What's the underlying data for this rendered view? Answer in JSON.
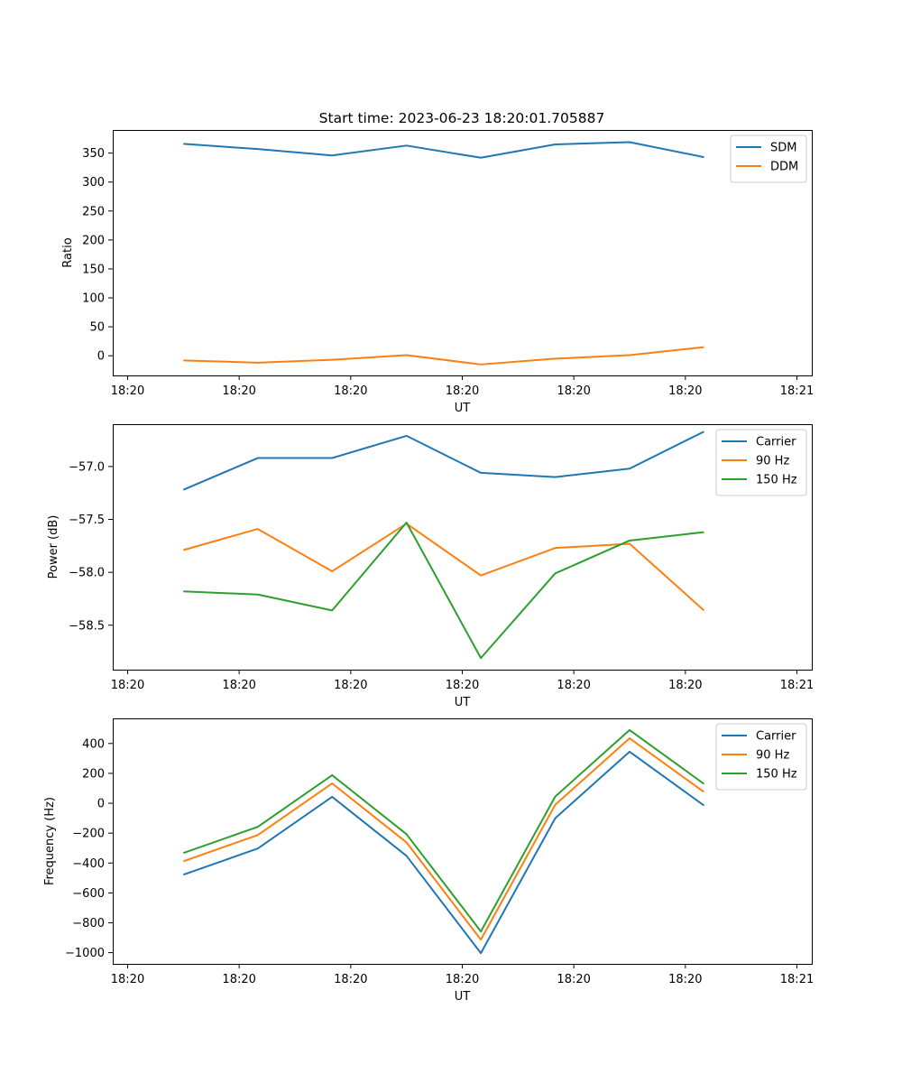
{
  "figure": {
    "title": "Start time: 2023-06-23 18:20:01.705887"
  },
  "chart_data": [
    {
      "type": "line",
      "title": "Start time: 2023-06-23 18:20:01.705887",
      "xlabel": "UT",
      "ylabel": "Ratio",
      "x": [
        1,
        2,
        3,
        4,
        5,
        6,
        7,
        8
      ],
      "x_ticks": [
        0.25,
        1.75,
        3.25,
        4.75,
        6.25,
        7.75,
        9.25
      ],
      "x_tick_labels": [
        "18:20",
        "18:20",
        "18:20",
        "18:20",
        "18:20",
        "18:20",
        "18:21"
      ],
      "xlim": [
        0.05,
        9.45
      ],
      "ylim": [
        -34,
        390
      ],
      "y_ticks": [
        0,
        50,
        100,
        150,
        200,
        250,
        300,
        350
      ],
      "y_tick_labels": [
        "0",
        "50",
        "100",
        "150",
        "200",
        "250",
        "300",
        "350"
      ],
      "grid": false,
      "legend_position": "upper right",
      "series": [
        {
          "name": "SDM",
          "color": "#1f77b4",
          "values": [
            366,
            357,
            346,
            363,
            342,
            365,
            369,
            343
          ]
        },
        {
          "name": "DDM",
          "color": "#ff7f0e",
          "values": [
            -8,
            -12,
            -7,
            1,
            -15,
            -5,
            1,
            15
          ]
        }
      ]
    },
    {
      "type": "line",
      "xlabel": "UT",
      "ylabel": "Power (dB)",
      "x": [
        1,
        2,
        3,
        4,
        5,
        6,
        7,
        8
      ],
      "x_ticks": [
        0.25,
        1.75,
        3.25,
        4.75,
        6.25,
        7.75,
        9.25
      ],
      "x_tick_labels": [
        "18:20",
        "18:20",
        "18:20",
        "18:20",
        "18:20",
        "18:20",
        "18:21"
      ],
      "xlim": [
        0.05,
        9.45
      ],
      "ylim": [
        -58.92,
        -56.6
      ],
      "y_ticks": [
        -58.5,
        -58.0,
        -57.5,
        -57.0
      ],
      "y_tick_labels": [
        "−58.5",
        "−58.0",
        "−57.5",
        "−57.0"
      ],
      "grid": false,
      "legend_position": "upper right",
      "series": [
        {
          "name": "Carrier",
          "color": "#1f77b4",
          "values": [
            -57.22,
            -56.92,
            -56.92,
            -56.71,
            -57.06,
            -57.1,
            -57.02,
            -56.67
          ]
        },
        {
          "name": "90 Hz",
          "color": "#ff7f0e",
          "values": [
            -57.79,
            -57.59,
            -57.99,
            -57.54,
            -58.03,
            -57.77,
            -57.73,
            -58.36
          ]
        },
        {
          "name": "150 Hz",
          "color": "#2ca02c",
          "values": [
            -58.18,
            -58.21,
            -58.36,
            -57.53,
            -58.81,
            -58.01,
            -57.7,
            -57.62
          ]
        }
      ]
    },
    {
      "type": "line",
      "xlabel": "UT",
      "ylabel": "Frequency (Hz)",
      "x": [
        1,
        2,
        3,
        4,
        5,
        6,
        7,
        8
      ],
      "x_ticks": [
        0.25,
        1.75,
        3.25,
        4.75,
        6.25,
        7.75,
        9.25
      ],
      "x_tick_labels": [
        "18:20",
        "18:20",
        "18:20",
        "18:20",
        "18:20",
        "18:20",
        "18:21"
      ],
      "xlim": [
        0.05,
        9.45
      ],
      "ylim": [
        -1075,
        568
      ],
      "y_ticks": [
        -1000,
        -800,
        -600,
        -400,
        -200,
        0,
        200,
        400
      ],
      "y_tick_labels": [
        "−1000",
        "−800",
        "−600",
        "−400",
        "−200",
        "0",
        "200",
        "400"
      ],
      "grid": false,
      "legend_position": "upper right",
      "series": [
        {
          "name": "Carrier",
          "color": "#1f77b4",
          "values": [
            -478,
            -303,
            43,
            -352,
            -1003,
            -100,
            345,
            -15
          ]
        },
        {
          "name": "90 Hz",
          "color": "#ff7f0e",
          "values": [
            -388,
            -213,
            133,
            -262,
            -913,
            -10,
            435,
            75
          ]
        },
        {
          "name": "150 Hz",
          "color": "#2ca02c",
          "values": [
            -333,
            -158,
            188,
            -207,
            -858,
            45,
            490,
            130
          ]
        }
      ]
    }
  ]
}
